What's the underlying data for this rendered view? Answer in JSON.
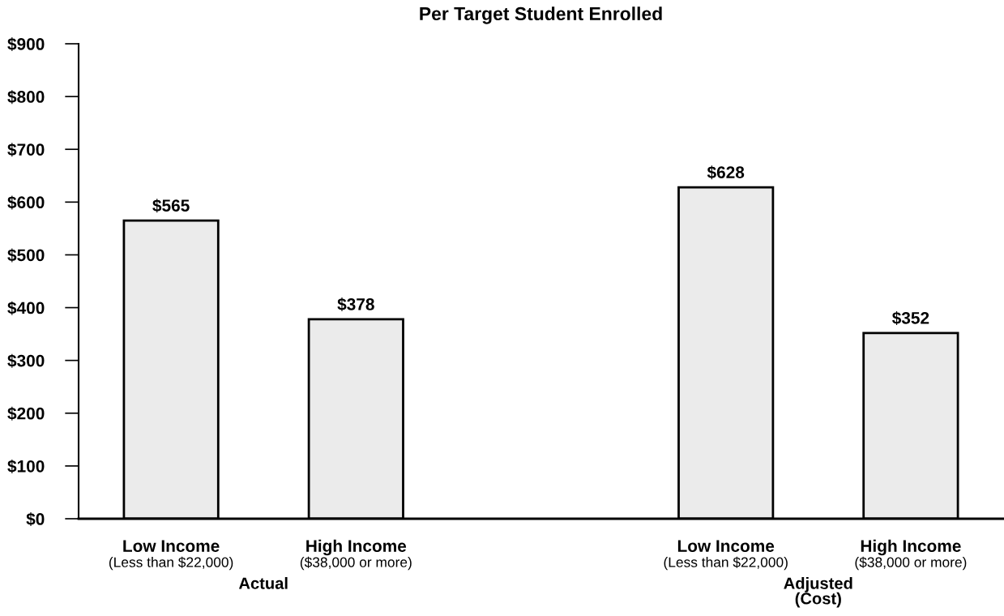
{
  "chart_data": {
    "type": "bar",
    "title": "Per Target Student Enrolled",
    "categories": [
      "Low Income\n(Less than $22,000)",
      "High Income\n($38,000 or more)",
      null,
      "Low Income\n(Less than $22,000)",
      "High Income\n($38,000 or more)"
    ],
    "values": [
      565,
      378,
      null,
      628,
      352
    ],
    "value_labels": [
      "$565",
      "$378",
      null,
      "$628",
      "$352"
    ],
    "color": "#ebebeb",
    "ylim": [
      0,
      900
    ],
    "yticks": [
      {
        "value": 0,
        "label": "$0"
      },
      {
        "value": 100,
        "label": "$100"
      },
      {
        "value": 200,
        "label": "$200"
      },
      {
        "value": 300,
        "label": "$300"
      },
      {
        "value": 400,
        "label": "$400"
      },
      {
        "value": 500,
        "label": "$500"
      },
      {
        "value": 600,
        "label": "$600"
      },
      {
        "value": 700,
        "label": "$700"
      },
      {
        "value": 800,
        "label": "$800"
      },
      {
        "value": 900,
        "label": "$900"
      }
    ],
    "annotations": [
      "Actual",
      "Adjusted\n(Cost)"
    ]
  }
}
